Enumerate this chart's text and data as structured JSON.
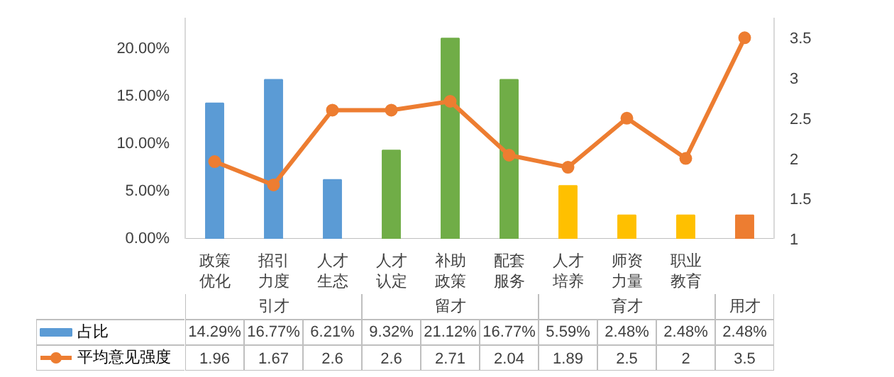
{
  "chart_data": {
    "type": "bar",
    "categories": [
      "政策优化",
      "招引力度",
      "人才生态",
      "人才认定",
      "补助政策",
      "配套服务",
      "人才培养",
      "师资力量",
      "职业教育",
      null
    ],
    "series": [
      {
        "name": "占比",
        "type": "bar",
        "colors": [
          "#5b9bd5",
          "#5b9bd5",
          "#5b9bd5",
          "#70ad47",
          "#70ad47",
          "#70ad47",
          "#ffc000",
          "#ffc000",
          "#ffc000",
          "#ed7d31"
        ],
        "values": [
          14.29,
          16.77,
          6.21,
          9.32,
          21.12,
          16.77,
          5.59,
          2.48,
          2.48,
          2.48
        ],
        "value_labels": [
          "14.29%",
          "16.77%",
          "6.21%",
          "9.32%",
          "21.12%",
          "16.77%",
          "5.59%",
          "2.48%",
          "2.48%",
          "2.48%"
        ]
      },
      {
        "name": "平均意见强度",
        "type": "line",
        "axis": "y2",
        "color": "#ed7d31",
        "values": [
          1.96,
          1.67,
          2.6,
          2.6,
          2.71,
          2.04,
          1.89,
          2.5,
          2,
          3.5
        ],
        "value_labels": [
          "1.96",
          "1.67",
          "2.6",
          "2.6",
          "2.71",
          "2.04",
          "1.89",
          "2.5",
          "2",
          "3.5"
        ]
      }
    ],
    "annotations": [
      "引才",
      "留才",
      "育才",
      "用才"
    ],
    "ylim": [
      0,
      23.3
    ],
    "yticks": [
      {
        "value": 0,
        "label": "0.00%"
      },
      {
        "value": 5,
        "label": "5.00%"
      },
      {
        "value": 10,
        "label": "10.00%"
      },
      {
        "value": 15,
        "label": "15.00%"
      },
      {
        "value": 20,
        "label": "20.00%"
      }
    ],
    "y2lim": [
      1,
      3.75
    ],
    "y2ticks": [
      1,
      1.5,
      2,
      2.5,
      3,
      3.5
    ],
    "legend": "bottom",
    "marker": "circle"
  }
}
